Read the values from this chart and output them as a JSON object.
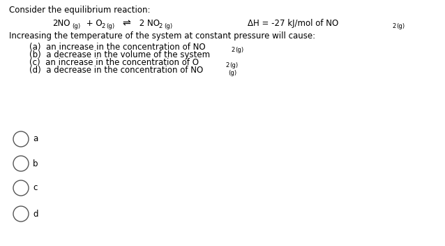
{
  "background_color": "#ffffff",
  "font_size": 8.5,
  "font_family": "DejaVu Sans",
  "radio_labels": [
    "a",
    "b",
    "c",
    "d"
  ],
  "radio_circle_size": 14
}
